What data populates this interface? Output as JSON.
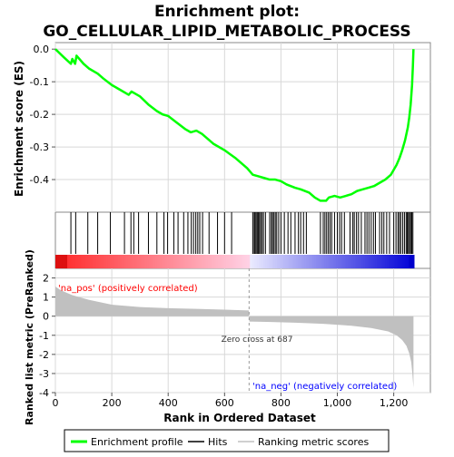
{
  "chart_data": {
    "type": "line",
    "title_line1": "Enrichment plot:",
    "title_line2": "GO_CELLULAR_LIPID_METABOLIC_PROCESS",
    "es_panel": {
      "ylabel": "Enrichment score (ES)",
      "ylim": [
        -0.5,
        0.02
      ],
      "yticks": [
        0.0,
        -0.1,
        -0.2,
        -0.3,
        -0.4
      ],
      "ytick_labels": [
        "0.0",
        "-0.1",
        "-0.2",
        "-0.3",
        "-0.4"
      ],
      "series": [
        {
          "name": "Enrichment profile",
          "color": "#00ff00",
          "x": [
            0,
            30,
            55,
            60,
            70,
            75,
            100,
            120,
            150,
            170,
            200,
            230,
            260,
            270,
            300,
            330,
            360,
            380,
            400,
            430,
            460,
            480,
            500,
            520,
            560,
            600,
            640,
            680,
            700,
            720,
            740,
            760,
            780,
            800,
            820,
            850,
            870,
            900,
            920,
            940,
            960,
            970,
            990,
            1010,
            1030,
            1050,
            1070,
            1090,
            1110,
            1130,
            1150,
            1170,
            1190,
            1200,
            1210,
            1220,
            1230,
            1240,
            1250,
            1255,
            1260,
            1265,
            1268,
            1270
          ],
          "y": [
            0.0,
            -0.025,
            -0.045,
            -0.03,
            -0.045,
            -0.02,
            -0.045,
            -0.06,
            -0.075,
            -0.09,
            -0.11,
            -0.125,
            -0.14,
            -0.13,
            -0.145,
            -0.17,
            -0.19,
            -0.2,
            -0.205,
            -0.225,
            -0.245,
            -0.255,
            -0.25,
            -0.26,
            -0.29,
            -0.31,
            -0.335,
            -0.365,
            -0.385,
            -0.39,
            -0.395,
            -0.4,
            -0.4,
            -0.405,
            -0.415,
            -0.425,
            -0.43,
            -0.44,
            -0.455,
            -0.465,
            -0.465,
            -0.455,
            -0.45,
            -0.455,
            -0.45,
            -0.445,
            -0.435,
            -0.43,
            -0.425,
            -0.42,
            -0.41,
            -0.4,
            -0.385,
            -0.37,
            -0.355,
            -0.335,
            -0.31,
            -0.28,
            -0.24,
            -0.21,
            -0.17,
            -0.11,
            -0.05,
            0.0
          ]
        }
      ]
    },
    "hits_panel": {
      "legend_name": "Hits",
      "hit_ranks": [
        55,
        72,
        115,
        150,
        195,
        245,
        268,
        278,
        295,
        330,
        360,
        385,
        398,
        420,
        435,
        455,
        470,
        482,
        490,
        498,
        505,
        512,
        522,
        545,
        575,
        600,
        625,
        700,
        705,
        708,
        712,
        716,
        720,
        724,
        728,
        733,
        738,
        745,
        760,
        766,
        770,
        775,
        780,
        785,
        792,
        800,
        812,
        825,
        835,
        850,
        862,
        870,
        880,
        890,
        940,
        950,
        956,
        962,
        968,
        974,
        980,
        990,
        1000,
        1008,
        1015,
        1025,
        1045,
        1055,
        1060,
        1068,
        1075,
        1085,
        1098,
        1105,
        1112,
        1120,
        1128,
        1135,
        1150,
        1158,
        1165,
        1175,
        1185,
        1200,
        1208,
        1215,
        1220,
        1225,
        1232,
        1238,
        1244,
        1248,
        1252,
        1256,
        1260,
        1264,
        1268
      ]
    },
    "ranked_panel": {
      "ylabel": "Ranked list metric (PreRanked)",
      "xlabel": "Rank in Ordered Dataset",
      "ylim": [
        -4,
        2.5
      ],
      "yticks": [
        2,
        1,
        0,
        -1,
        -2,
        -3,
        -4
      ],
      "ytick_labels": [
        "2",
        "1",
        "0",
        "-1",
        "-2",
        "-3",
        "-4"
      ],
      "xlim": [
        0,
        1330
      ],
      "xticks": [
        0,
        200,
        400,
        600,
        800,
        1000,
        1200
      ],
      "xtick_labels": [
        "0",
        "200",
        "400",
        "600",
        "800",
        "1,000",
        "1,200"
      ],
      "metric_x": [
        0,
        20,
        60,
        120,
        200,
        300,
        400,
        500,
        600,
        686,
        688,
        750,
        850,
        950,
        1050,
        1120,
        1180,
        1210,
        1230,
        1245,
        1255,
        1262,
        1266,
        1270
      ],
      "metric_y": [
        1.55,
        1.35,
        1.1,
        0.85,
        0.6,
        0.48,
        0.42,
        0.38,
        0.34,
        0.3,
        -0.28,
        -0.3,
        -0.34,
        -0.4,
        -0.5,
        -0.62,
        -0.8,
        -1.0,
        -1.25,
        -1.55,
        -1.95,
        -2.4,
        -3.0,
        -3.75
      ],
      "zero_cross_rank": 687,
      "zero_cross_label": "Zero cross at 687",
      "pos_label": "'na_pos' (positively correlated)",
      "neg_label": "'na_neg' (negatively correlated)",
      "pos_label_color": "#ff0000",
      "neg_label_color": "#0000ff",
      "fill_color": "#c0c0c0"
    },
    "legend": {
      "items": [
        {
          "label": "Enrichment profile",
          "color": "#00ff00"
        },
        {
          "label": "Hits",
          "color": "#000000"
        },
        {
          "label": "Ranking metric scores",
          "color": "#c0c0c0"
        }
      ]
    }
  }
}
